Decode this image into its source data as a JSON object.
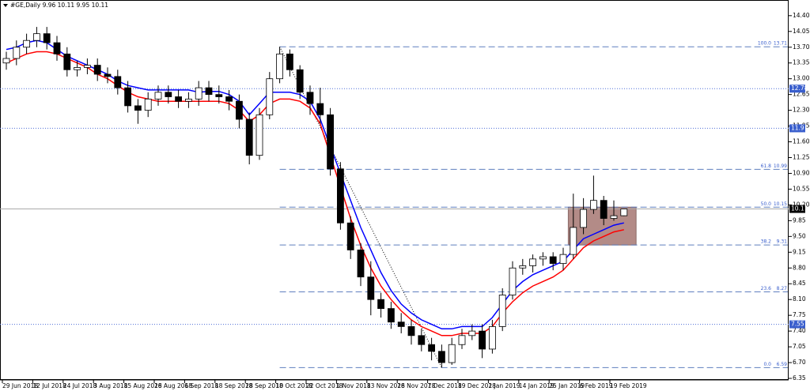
{
  "chart_data": {
    "type": "candlestick",
    "title": "#GE,Daily  9.96 10.11 9.95 10.11",
    "categories": [
      "29 Jun 2018",
      null,
      null,
      "12 Jul 2018",
      null,
      null,
      "24 Jul 2018",
      null,
      null,
      "3 Aug 2018",
      null,
      null,
      "15 Aug 2018",
      null,
      null,
      "26 Aug 2018",
      null,
      null,
      "6 Sep 2018",
      null,
      null,
      "18 Sep 2018",
      null,
      null,
      "28 Sep 2018",
      null,
      null,
      "10 Oct 2018",
      null,
      null,
      "22 Oct 2018",
      null,
      null,
      "1 Nov 2018",
      null,
      null,
      "13 Nov 2018",
      null,
      null,
      "26 Nov 2018",
      null,
      null,
      "7 Dec 2018",
      null,
      null,
      "19 Dec 2018",
      null,
      null,
      "2 Jan 2019",
      null,
      null,
      "14 Jan 2019",
      null,
      null,
      "25 Jan 2019",
      null,
      null,
      "6 Feb 2019",
      null,
      null,
      "19 Feb 2019",
      null
    ],
    "open": [
      13.35,
      13.45,
      13.7,
      13.85,
      14.0,
      13.8,
      13.55,
      13.2,
      13.25,
      13.3,
      13.1,
      13.05,
      12.8,
      12.4,
      12.3,
      12.55,
      12.7,
      12.6,
      12.5,
      12.55,
      12.8,
      12.65,
      12.6,
      12.5,
      12.1,
      11.3,
      12.2,
      13.0,
      13.55,
      13.2,
      12.7,
      12.45,
      12.2,
      11.0,
      9.8,
      9.2,
      8.6,
      8.1,
      7.9,
      7.6,
      7.5,
      7.3,
      7.1,
      6.95,
      6.7,
      7.1,
      7.3,
      7.4,
      7.0,
      7.5,
      8.2,
      8.8,
      8.85,
      9.0,
      9.05,
      8.9,
      9.1,
      9.7,
      10.1,
      10.3,
      9.9,
      9.96
    ],
    "high": [
      13.6,
      13.85,
      14.0,
      14.15,
      14.15,
      13.95,
      13.7,
      13.4,
      13.45,
      13.45,
      13.25,
      13.2,
      12.95,
      12.55,
      12.7,
      12.85,
      12.85,
      12.75,
      12.7,
      12.95,
      12.95,
      12.85,
      12.75,
      12.65,
      12.25,
      12.35,
      13.15,
      13.71,
      13.65,
      13.3,
      12.85,
      12.8,
      12.35,
      11.15,
      9.95,
      9.35,
      8.95,
      8.25,
      8.05,
      7.8,
      7.65,
      7.45,
      7.25,
      7.1,
      7.25,
      7.45,
      7.55,
      7.55,
      7.65,
      8.35,
      8.95,
      9.0,
      9.1,
      9.15,
      9.15,
      9.25,
      10.45,
      10.35,
      10.85,
      10.4,
      10.3,
      10.11
    ],
    "low": [
      13.2,
      13.3,
      13.55,
      13.7,
      13.65,
      13.4,
      13.05,
      13.05,
      13.1,
      12.95,
      12.9,
      12.65,
      12.25,
      12.0,
      12.15,
      12.4,
      12.45,
      12.35,
      12.35,
      12.4,
      12.5,
      12.45,
      12.3,
      11.9,
      11.1,
      11.2,
      12.1,
      12.9,
      13.05,
      12.55,
      12.2,
      12.0,
      10.85,
      9.65,
      9.0,
      8.4,
      7.75,
      7.7,
      7.45,
      7.35,
      7.1,
      6.95,
      6.75,
      6.59,
      6.65,
      7.0,
      7.2,
      6.8,
      6.9,
      7.4,
      8.1,
      8.65,
      8.7,
      8.85,
      8.75,
      8.75,
      9.0,
      9.55,
      10.0,
      9.75,
      9.85,
      9.95
    ],
    "close": [
      13.45,
      13.7,
      13.85,
      14.0,
      13.8,
      13.55,
      13.2,
      13.25,
      13.3,
      13.1,
      13.05,
      12.8,
      12.4,
      12.3,
      12.55,
      12.7,
      12.6,
      12.5,
      12.55,
      12.8,
      12.65,
      12.6,
      12.5,
      12.1,
      11.3,
      12.2,
      13.0,
      13.55,
      13.2,
      12.7,
      12.45,
      12.2,
      11.0,
      9.8,
      9.2,
      8.6,
      8.1,
      7.9,
      7.6,
      7.5,
      7.3,
      7.1,
      6.95,
      6.7,
      7.1,
      7.3,
      7.4,
      7.0,
      7.5,
      8.2,
      8.8,
      8.85,
      9.0,
      9.05,
      8.9,
      9.1,
      9.7,
      10.1,
      10.3,
      9.9,
      9.96,
      10.11
    ],
    "series": [
      {
        "color": "#0000ff",
        "values": [
          13.65,
          13.7,
          13.8,
          13.85,
          13.8,
          13.65,
          13.5,
          13.4,
          13.3,
          13.2,
          13.1,
          12.95,
          12.85,
          12.8,
          12.75,
          12.75,
          12.75,
          12.75,
          12.75,
          12.7,
          12.72,
          12.72,
          12.65,
          12.5,
          12.2,
          12.45,
          12.7,
          12.7,
          12.7,
          12.65,
          12.5,
          12.1,
          11.5,
          10.9,
          10.3,
          9.7,
          9.2,
          8.7,
          8.3,
          8.0,
          7.8,
          7.65,
          7.55,
          7.45,
          7.45,
          7.5,
          7.5,
          7.5,
          7.7,
          8.0,
          8.3,
          8.5,
          8.65,
          8.75,
          8.85,
          8.95,
          9.2,
          9.45,
          9.55,
          9.65,
          9.75,
          9.8
        ]
      },
      {
        "color": "#ff0000",
        "values": [
          13.35,
          13.45,
          13.55,
          13.6,
          13.6,
          13.55,
          13.45,
          13.35,
          13.25,
          13.1,
          13.0,
          12.85,
          12.7,
          12.6,
          12.55,
          12.5,
          12.5,
          12.5,
          12.5,
          12.5,
          12.5,
          12.5,
          12.45,
          12.3,
          12.05,
          12.2,
          12.45,
          12.55,
          12.55,
          12.5,
          12.35,
          12.0,
          11.3,
          10.6,
          9.9,
          9.3,
          8.8,
          8.4,
          8.1,
          7.85,
          7.65,
          7.5,
          7.4,
          7.3,
          7.3,
          7.35,
          7.35,
          7.35,
          7.5,
          7.8,
          8.05,
          8.25,
          8.4,
          8.5,
          8.6,
          8.75,
          9.0,
          9.25,
          9.4,
          9.5,
          9.6,
          9.65
        ]
      }
    ],
    "ylim": [
      6.21,
      14.66
    ],
    "yticks": [
      {
        "value": 14.4,
        "label": "14.40"
      },
      14.05,
      {
        "value": 13.7,
        "label": "13.70"
      },
      13.35,
      {
        "value": 13,
        "label": "13.00"
      },
      12.65,
      {
        "value": 12.3,
        "label": "12.30"
      },
      11.95,
      {
        "value": 11.6,
        "label": "11.60"
      },
      11.25,
      {
        "value": 10.9,
        "label": "10.90"
      },
      10.55,
      {
        "value": 10.2,
        "label": "10.20"
      },
      9.85,
      {
        "value": 9.5,
        "label": "9.50"
      },
      9.15,
      {
        "value": 8.8,
        "label": "8.80"
      },
      8.45,
      {
        "value": 8.1,
        "label": "8.10"
      },
      7.75,
      {
        "value": 7.4,
        "label": "7.40"
      },
      7.05,
      {
        "value": 6.7,
        "label": "6.70"
      },
      6.35
    ],
    "levels": [
      12.78,
      11.9,
      7.55
    ],
    "last_price": 10.11,
    "fibonacci": [
      {
        "ratio": "100.0",
        "value": 13.71
      },
      {
        "ratio": "61.8",
        "value": 10.99
      },
      {
        "ratio": "50.0",
        "value": 10.15
      },
      {
        "ratio": "38.2",
        "value": 9.31
      },
      {
        "ratio": "23.6",
        "value": 8.27
      },
      {
        "ratio": "0.0",
        "value": 6.59
      }
    ],
    "box": {
      "low": 9.31,
      "high": 10.15,
      "color": "#b38b87"
    }
  }
}
